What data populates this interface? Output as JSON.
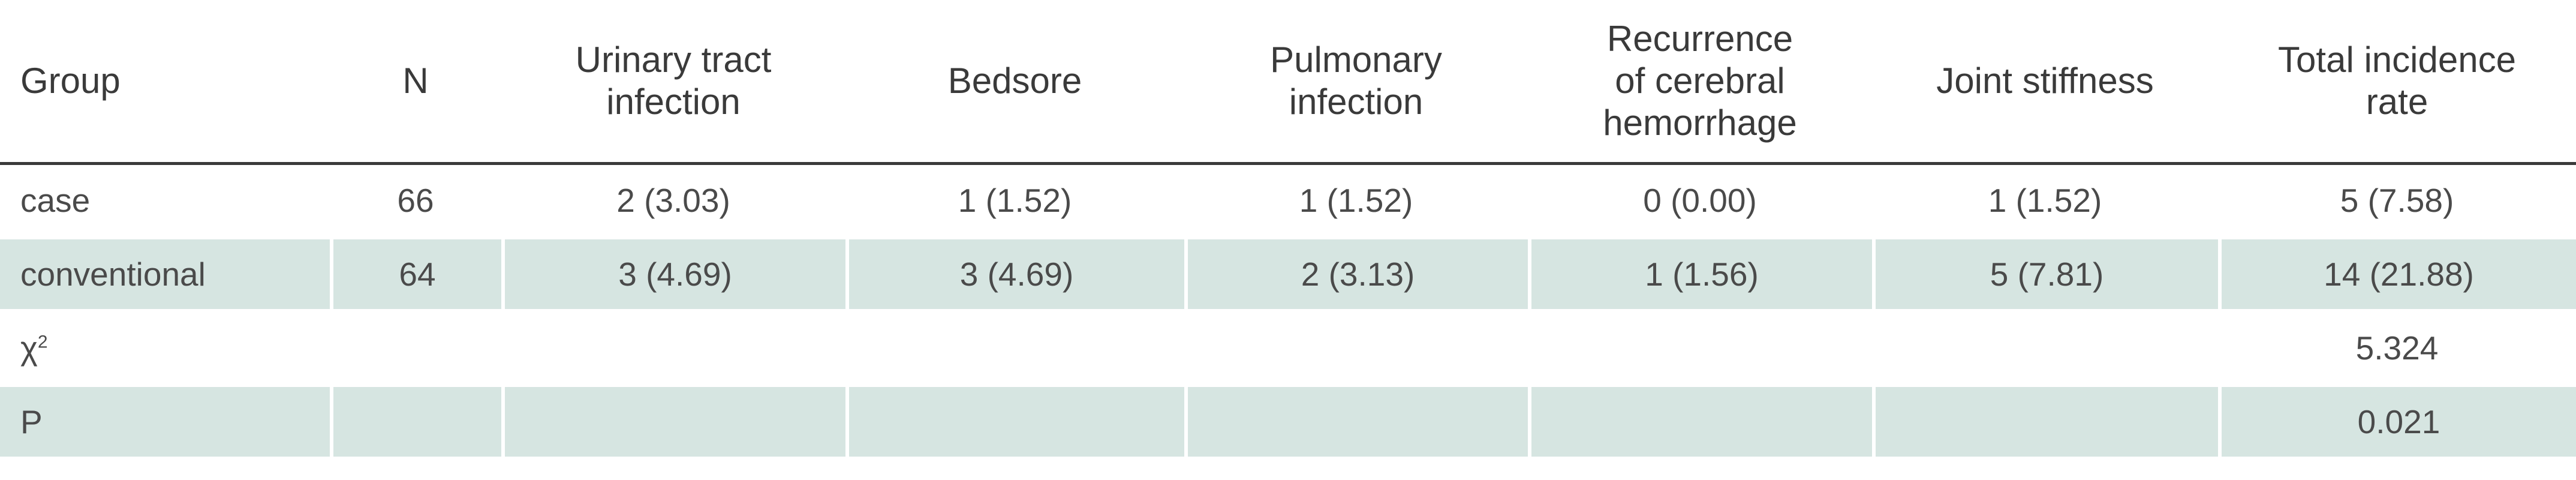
{
  "table": {
    "headers": [
      {
        "lines": [
          "Group"
        ]
      },
      {
        "lines": [
          "N"
        ]
      },
      {
        "lines": [
          "Urinary tract",
          "infection"
        ]
      },
      {
        "lines": [
          "Bedsore"
        ]
      },
      {
        "lines": [
          "Pulmonary",
          "infection"
        ]
      },
      {
        "lines": [
          "Recurrence",
          "of cerebral",
          "hemorrhage"
        ]
      },
      {
        "lines": [
          "Joint stiffness"
        ]
      },
      {
        "lines": [
          "Total incidence",
          "rate"
        ]
      }
    ],
    "rows": [
      [
        "case",
        "66",
        "2 (3.03)",
        "1 (1.52)",
        "1 (1.52)",
        "0 (0.00)",
        "1 (1.52)",
        "5 (7.58)"
      ],
      [
        "conventional",
        "64",
        "3 (4.69)",
        "3 (4.69)",
        "2 (3.13)",
        "1 (1.56)",
        "5 (7.81)",
        "14 (21.88)"
      ],
      [
        "",
        "",
        "",
        "",
        "",
        "",
        "",
        "5.324"
      ],
      [
        "P",
        "",
        "",
        "",
        "",
        "",
        "",
        "0.021"
      ]
    ],
    "chi_label": {
      "base": "χ",
      "sup": "2"
    },
    "colors": {
      "header_rule": "#3a3a3a",
      "band": "#d6e5e1",
      "text": "#4a4a4a"
    }
  }
}
